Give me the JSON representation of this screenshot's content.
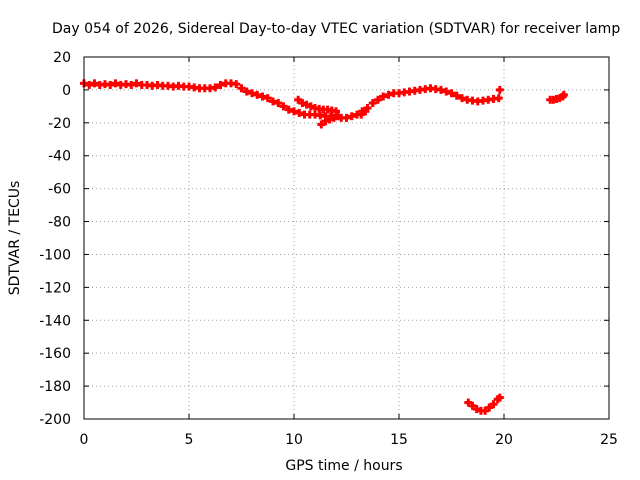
{
  "chart_data": {
    "type": "scatter",
    "title": "Day 054 of 2026, Sidereal Day-to-day VTEC variation (SDTVAR) for receiver lamp",
    "xlabel": "GPS time / hours",
    "ylabel": "SDTVAR / TECUs",
    "xlim": [
      0,
      25
    ],
    "ylim": [
      -200,
      20
    ],
    "x_ticks": [
      0,
      5,
      10,
      15,
      20,
      25
    ],
    "y_ticks": [
      20,
      0,
      -20,
      -40,
      -60,
      -80,
      -100,
      -120,
      -140,
      -160,
      -180,
      -200
    ],
    "grid": true,
    "marker": "+",
    "color": "#ff0000",
    "series": [
      {
        "values": [
          [
            0.0,
            4
          ],
          [
            0.25,
            3
          ],
          [
            0.5,
            4
          ],
          [
            0.75,
            3
          ],
          [
            1.0,
            3.5
          ],
          [
            1.25,
            3
          ],
          [
            1.5,
            4
          ],
          [
            1.75,
            3
          ],
          [
            2.0,
            3.5
          ],
          [
            2.25,
            3
          ],
          [
            2.5,
            4
          ],
          [
            2.75,
            3
          ],
          [
            3.0,
            3
          ],
          [
            3.25,
            2.5
          ],
          [
            3.5,
            3
          ],
          [
            3.75,
            2.5
          ],
          [
            4.0,
            2.5
          ],
          [
            4.25,
            2
          ],
          [
            4.5,
            2.5
          ],
          [
            4.75,
            2
          ],
          [
            5.0,
            2
          ],
          [
            5.25,
            1.5
          ],
          [
            5.5,
            1
          ],
          [
            5.75,
            1
          ],
          [
            6.0,
            1
          ],
          [
            6.25,
            1.5
          ],
          [
            6.5,
            3
          ],
          [
            6.75,
            4
          ],
          [
            7.0,
            4
          ],
          [
            7.25,
            3.5
          ],
          [
            7.5,
            1
          ],
          [
            7.75,
            -1
          ],
          [
            8.0,
            -2
          ],
          [
            8.25,
            -3
          ],
          [
            8.5,
            -4
          ],
          [
            8.75,
            -5
          ],
          [
            9.0,
            -7
          ],
          [
            9.25,
            -8
          ],
          [
            9.5,
            -10
          ],
          [
            9.75,
            -12
          ],
          [
            10.0,
            -13
          ],
          [
            10.25,
            -14
          ],
          [
            10.5,
            -15
          ],
          [
            10.75,
            -15
          ],
          [
            11.0,
            -15
          ],
          [
            11.25,
            -15.5
          ],
          [
            11.5,
            -16
          ],
          [
            11.75,
            -16
          ],
          [
            12.0,
            -16
          ],
          [
            12.25,
            -17
          ],
          [
            12.5,
            -17
          ],
          [
            12.75,
            -16
          ],
          [
            13.0,
            -15
          ],
          [
            13.25,
            -13
          ],
          [
            13.5,
            -11
          ],
          [
            13.75,
            -8
          ],
          [
            14.0,
            -6
          ],
          [
            14.25,
            -4
          ],
          [
            14.5,
            -3
          ],
          [
            14.75,
            -2
          ],
          [
            15.0,
            -2
          ],
          [
            15.25,
            -1.5
          ],
          [
            15.5,
            -1
          ],
          [
            15.75,
            -0.5
          ],
          [
            16.0,
            0
          ],
          [
            16.25,
            0.5
          ],
          [
            16.5,
            1
          ],
          [
            16.75,
            0.5
          ],
          [
            17.0,
            0
          ],
          [
            17.25,
            -1
          ],
          [
            17.5,
            -2
          ],
          [
            17.75,
            -3.5
          ],
          [
            18.0,
            -5
          ],
          [
            18.25,
            -6
          ],
          [
            18.5,
            -6.5
          ],
          [
            18.75,
            -7
          ],
          [
            19.0,
            -6.5
          ],
          [
            19.25,
            -6
          ],
          [
            19.5,
            -5.5
          ],
          [
            19.75,
            -5
          ],
          [
            19.8,
            0
          ]
        ]
      },
      {
        "values": [
          [
            10.2,
            -6
          ],
          [
            10.4,
            -8
          ],
          [
            10.6,
            -9
          ],
          [
            10.8,
            -10
          ],
          [
            11.0,
            -11
          ],
          [
            11.2,
            -11.5
          ],
          [
            11.4,
            -12
          ],
          [
            11.6,
            -12
          ],
          [
            11.8,
            -12.5
          ],
          [
            12.0,
            -13
          ],
          [
            11.3,
            -21
          ],
          [
            11.5,
            -19
          ],
          [
            11.7,
            -18
          ],
          [
            11.9,
            -17
          ],
          [
            12.1,
            -16
          ],
          [
            13.2,
            -15
          ],
          [
            13.4,
            -13
          ]
        ]
      },
      {
        "values": [
          [
            18.3,
            -190
          ],
          [
            18.5,
            -192
          ],
          [
            18.7,
            -194
          ],
          [
            18.9,
            -195
          ],
          [
            19.1,
            -195
          ],
          [
            19.3,
            -193
          ],
          [
            19.5,
            -191
          ],
          [
            19.7,
            -188
          ],
          [
            19.8,
            -187
          ]
        ]
      },
      {
        "values": [
          [
            22.2,
            -6
          ],
          [
            22.35,
            -6
          ],
          [
            22.5,
            -5.5
          ],
          [
            22.65,
            -5
          ],
          [
            22.8,
            -4
          ],
          [
            22.85,
            -3
          ]
        ]
      }
    ]
  }
}
